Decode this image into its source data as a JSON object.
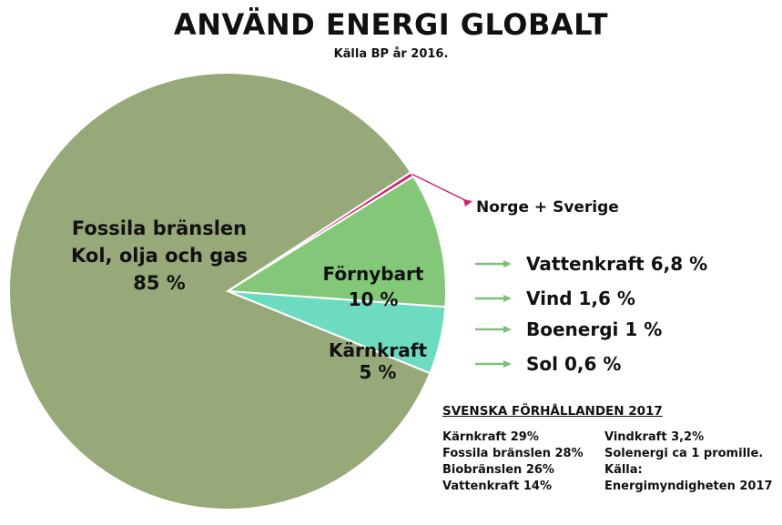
{
  "title": "ANVÄND ENERGI GLOBALT",
  "subtitle": "Källa BP år 2016.",
  "chart_data": {
    "type": "pie",
    "slices": [
      {
        "key": "fossil",
        "lines": [
          "Fossila bränslen",
          "Kol, olja och gas",
          "85 %"
        ],
        "value": 85,
        "color": "#97a978"
      },
      {
        "key": "norge",
        "lines": [],
        "value": 0.35,
        "color": "#d0206e"
      },
      {
        "key": "fornybart",
        "lines": [
          "Förnybart",
          "10 %"
        ],
        "value": 10,
        "color": "#83c878"
      },
      {
        "key": "karnkraft",
        "lines": [
          "Kärnkraft",
          "5 %"
        ],
        "value": 5,
        "color": "#6ddbc0"
      }
    ],
    "callout": "Norge + Sverige",
    "renewable_breakdown": [
      {
        "label": "Vattenkraft 6,8 %",
        "value": 6.8
      },
      {
        "label": "Vind 1,6 %",
        "value": 1.6
      },
      {
        "label": "Boenergi 1 %",
        "value": 1
      },
      {
        "label": "Sol 0,6 %",
        "value": 0.6
      }
    ],
    "arrow_color": "#7fbf78"
  },
  "swedish": {
    "heading": "SVENSKA FÖRHÅLLANDEN 2017",
    "left": [
      "Kärnkraft 29%",
      "Fossila bränslen 28%",
      "Biobränslen 26%",
      "Vattenkraft 14%"
    ],
    "right": [
      "Vindkraft 3,2%",
      "Solenergi ca 1 promille.",
      "Källa:",
      "Energimyndigheten 2017"
    ]
  }
}
